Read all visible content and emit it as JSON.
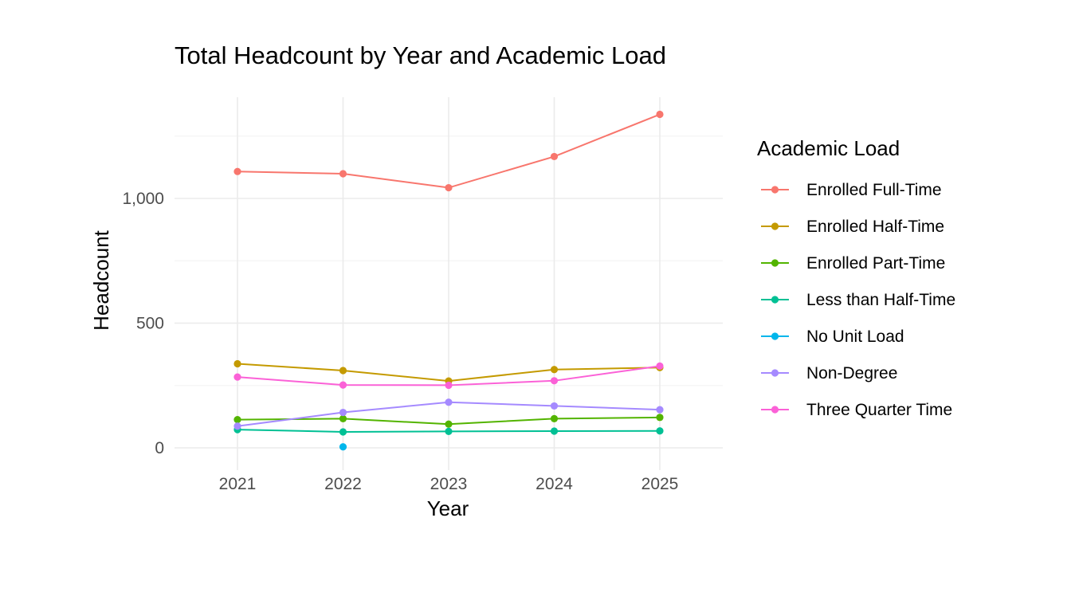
{
  "chart_data": {
    "type": "line",
    "title": "Total Headcount by Year and Academic Load",
    "xlabel": "Year",
    "ylabel": "Headcount",
    "x": [
      2021,
      2022,
      2023,
      2024,
      2025
    ],
    "x_tick_labels": [
      "2021",
      "2022",
      "2023",
      "2024",
      "2025"
    ],
    "y_ticks": [
      0,
      500,
      1000
    ],
    "y_tick_labels": [
      "0",
      "500",
      "1,000"
    ],
    "ylim": [
      -90,
      1400
    ],
    "xlim": [
      2020.4,
      2025.6
    ],
    "grid": true,
    "legend": {
      "title": "Academic Load",
      "position": "right"
    },
    "series": [
      {
        "name": "Enrolled Full-Time",
        "color": "#F8766D",
        "values": [
          1108,
          1099,
          1043,
          1168,
          1337
        ]
      },
      {
        "name": "Enrolled Half-Time",
        "color": "#C49A00",
        "values": [
          337,
          310,
          268,
          314,
          322
        ]
      },
      {
        "name": "Enrolled Part-Time",
        "color": "#53B400",
        "values": [
          113,
          117,
          95,
          117,
          122
        ]
      },
      {
        "name": "Less than Half-Time",
        "color": "#00C094",
        "values": [
          73,
          64,
          66,
          67,
          68
        ]
      },
      {
        "name": "No Unit Load",
        "color": "#00B6EB",
        "values": [
          null,
          4,
          null,
          null,
          null
        ]
      },
      {
        "name": "Non-Degree",
        "color": "#A58AFF",
        "values": [
          87,
          142,
          183,
          168,
          153
        ]
      },
      {
        "name": "Three Quarter Time",
        "color": "#FB61D7",
        "values": [
          284,
          252,
          251,
          269,
          328
        ]
      }
    ]
  }
}
